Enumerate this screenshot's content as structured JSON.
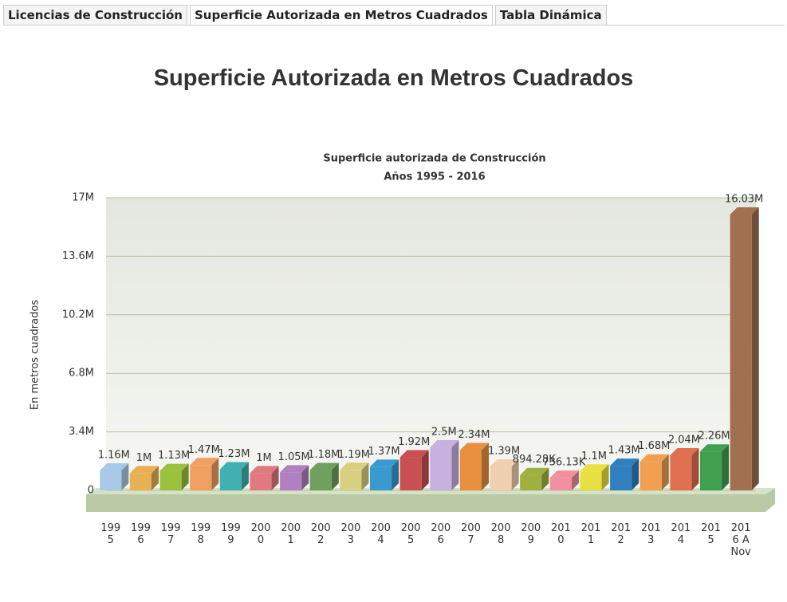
{
  "tabs": [
    "Licencias de Construcción",
    "Superficie Autorizada en Metros Cuadrados",
    "Tabla Dinámica"
  ],
  "page_title": "Superficie Autorizada en Metros Cuadrados",
  "chart_data": {
    "type": "bar3d",
    "title": "Superficie autorizada de Construcción",
    "subtitle": "Años 1995 - 2016",
    "y_label": "En metros cuadrados",
    "categories": [
      "1995",
      "1996",
      "1997",
      "1998",
      "1999",
      "2000",
      "2001",
      "2002",
      "2003",
      "2004",
      "2005",
      "2006",
      "2007",
      "2008",
      "2009",
      "2010",
      "2011",
      "2012",
      "2013",
      "2014",
      "2015",
      "2016 A Nov"
    ],
    "values": [
      1160000,
      1000000,
      1130000,
      1470000,
      1230000,
      1000000,
      1050000,
      1180000,
      1190000,
      1370000,
      1920000,
      2500000,
      2340000,
      1390000,
      894280,
      736130,
      1100000,
      1430000,
      1680000,
      2040000,
      2260000,
      16030000
    ],
    "value_labels": [
      "1.16M",
      "1M",
      "1.13M",
      "1.47M",
      "1.23M",
      "1M",
      "1.05M",
      "1.18M",
      "1.19M",
      "1.37M",
      "1.92M",
      "2.5M",
      "2.34M",
      "1.39M",
      "894.28K",
      "736.13K",
      "1.1M",
      "1.43M",
      "1.68M",
      "2.04M",
      "2.26M",
      "16.03M"
    ],
    "colors": [
      "#a9c9e8",
      "#e8b055",
      "#9bc23c",
      "#f0a060",
      "#40b0b0",
      "#e07a80",
      "#b080c0",
      "#70a060",
      "#d8d080",
      "#3a9ad0",
      "#c85050",
      "#c8b0e0",
      "#e89040",
      "#f0d0b0",
      "#a0b040",
      "#f090a0",
      "#e8e040",
      "#3080c0",
      "#f0a050",
      "#e07050",
      "#40a050",
      "#a07050"
    ],
    "ylim": [
      0,
      17000000
    ],
    "yticks": [
      0,
      {
        "value": 3400000,
        "label": "3.4M"
      },
      {
        "value": 6800000,
        "label": "6.8M"
      },
      {
        "value": 10200000,
        "label": "10.2M"
      },
      {
        "value": 13600000,
        "label": "13.6M"
      },
      {
        "value": 17000000,
        "label": "17M"
      }
    ],
    "grid": true
  }
}
